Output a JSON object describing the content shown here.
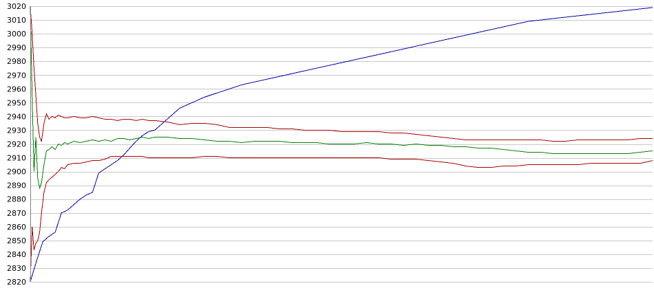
{
  "chart_data": {
    "type": "line",
    "title": "",
    "xlabel": "",
    "ylabel": "",
    "ylim": [
      2820,
      3020
    ],
    "xlim": [
      0,
      100
    ],
    "yticks": [
      3020,
      3010,
      3000,
      2990,
      2980,
      2970,
      2960,
      2950,
      2940,
      2930,
      2920,
      2910,
      2900,
      2890,
      2880,
      2870,
      2860,
      2850,
      2840,
      2830,
      2820
    ],
    "grid": true,
    "legend": "none",
    "series": [
      {
        "color": "#0000aa",
        "x": [
          0,
          1,
          2,
          3,
          4,
          5,
          6,
          7,
          8,
          9,
          10,
          11,
          12,
          13,
          14,
          15,
          16,
          17,
          18,
          19,
          20,
          22,
          24,
          26,
          28,
          30,
          32,
          34,
          36,
          38,
          40,
          42,
          44,
          46,
          48,
          50,
          52,
          54,
          56,
          58,
          60,
          62,
          64,
          66,
          68,
          70,
          72,
          74,
          76,
          78,
          80,
          82,
          84,
          86,
          88,
          90,
          92,
          94,
          96,
          98,
          100
        ],
        "values": [
          2820,
          2835,
          2849,
          2853,
          2856,
          2870,
          2872,
          2876,
          2880,
          2883,
          2885,
          2899,
          2902,
          2905,
          2908,
          2912,
          2917,
          2922,
          2926,
          2929,
          2930,
          2938,
          2946,
          2950,
          2954,
          2957,
          2960,
          2963,
          2965,
          2967,
          2969,
          2971,
          2973,
          2975,
          2977,
          2979,
          2981,
          2983,
          2985,
          2987,
          2989,
          2991,
          2993,
          2995,
          2997,
          2999,
          3001,
          3003,
          3005,
          3007,
          3009,
          3010,
          3011,
          3012,
          3013,
          3014,
          3015,
          3016,
          3017,
          3018,
          3019
        ]
      },
      {
        "color": "#008000",
        "x": [
          0,
          0.3,
          0.6,
          0.9,
          1.2,
          1.5,
          1.8,
          2.2,
          2.6,
          3.0,
          3.5,
          4.0,
          4.5,
          5.0,
          5.5,
          6,
          7,
          8,
          9,
          10,
          11,
          12,
          13,
          14,
          15,
          16,
          17,
          18,
          19,
          20,
          22,
          24,
          26,
          28,
          30,
          32,
          34,
          36,
          38,
          40,
          42,
          44,
          46,
          48,
          50,
          52,
          54,
          56,
          58,
          60,
          62,
          64,
          66,
          68,
          70,
          72,
          74,
          76,
          78,
          80,
          82,
          84,
          86,
          88,
          90,
          92,
          94,
          96,
          98,
          100
        ],
        "values": [
          3020,
          2955,
          2900,
          2925,
          2895,
          2888,
          2892,
          2905,
          2915,
          2916,
          2918,
          2916,
          2920,
          2919,
          2921,
          2920,
          2922,
          2921,
          2922,
          2923,
          2922,
          2923,
          2922,
          2924,
          2924,
          2923,
          2924,
          2925,
          2924,
          2925,
          2925,
          2924,
          2924,
          2923,
          2922,
          2922,
          2921,
          2922,
          2922,
          2922,
          2921,
          2921,
          2921,
          2920,
          2920,
          2920,
          2921,
          2920,
          2920,
          2919,
          2920,
          2919,
          2919,
          2918,
          2918,
          2917,
          2917,
          2916,
          2915,
          2914,
          2914,
          2913,
          2913,
          2913,
          2913,
          2913,
          2913,
          2913,
          2914,
          2915
        ]
      },
      {
        "color": "#aa0000",
        "x": [
          0,
          0.3,
          0.6,
          0.9,
          1.2,
          1.5,
          1.8,
          2.2,
          2.6,
          3.0,
          3.5,
          4.0,
          4.5,
          5.0,
          5.5,
          6,
          7,
          8,
          9,
          10,
          11,
          12,
          13,
          14,
          15,
          16,
          17,
          18,
          19,
          20,
          22,
          24,
          26,
          28,
          30,
          32,
          34,
          36,
          38,
          40,
          42,
          44,
          46,
          48,
          50,
          52,
          54,
          56,
          58,
          60,
          62,
          64,
          66,
          68,
          70,
          72,
          74,
          76,
          78,
          80,
          82,
          84,
          86,
          88,
          90,
          92,
          94,
          96,
          98,
          100
        ],
        "values": [
          3020,
          3000,
          2975,
          2955,
          2935,
          2925,
          2922,
          2935,
          2942,
          2938,
          2940,
          2939,
          2941,
          2940,
          2939,
          2939,
          2940,
          2939,
          2939,
          2940,
          2939,
          2938,
          2938,
          2937,
          2938,
          2938,
          2937,
          2938,
          2937,
          2937,
          2936,
          2934,
          2935,
          2935,
          2934,
          2932,
          2932,
          2932,
          2932,
          2931,
          2931,
          2930,
          2930,
          2930,
          2929,
          2929,
          2929,
          2929,
          2928,
          2928,
          2927,
          2926,
          2925,
          2924,
          2923,
          2923,
          2923,
          2923,
          2923,
          2923,
          2923,
          2922,
          2922,
          2923,
          2923,
          2923,
          2923,
          2923,
          2924,
          2924
        ]
      },
      {
        "color": "#aa0000",
        "x": [
          0,
          0.3,
          0.6,
          0.9,
          1.2,
          1.5,
          1.8,
          2.2,
          2.6,
          3.0,
          3.5,
          4.0,
          4.5,
          5.0,
          5.5,
          6,
          7,
          8,
          9,
          10,
          11,
          12,
          13,
          14,
          15,
          16,
          17,
          18,
          19,
          20,
          22,
          24,
          26,
          28,
          30,
          32,
          34,
          36,
          38,
          40,
          42,
          44,
          46,
          48,
          50,
          52,
          54,
          56,
          58,
          60,
          62,
          64,
          66,
          68,
          70,
          72,
          74,
          76,
          78,
          80,
          82,
          84,
          86,
          88,
          90,
          92,
          94,
          96,
          98,
          100
        ],
        "values": [
          2820,
          2860,
          2843,
          2848,
          2850,
          2856,
          2870,
          2885,
          2892,
          2894,
          2896,
          2898,
          2900,
          2903,
          2902,
          2905,
          2906,
          2906,
          2907,
          2908,
          2908,
          2909,
          2911,
          2911,
          2911,
          2911,
          2911,
          2911,
          2910,
          2910,
          2910,
          2910,
          2910,
          2911,
          2911,
          2910,
          2910,
          2910,
          2910,
          2910,
          2910,
          2910,
          2910,
          2910,
          2910,
          2910,
          2910,
          2910,
          2909,
          2909,
          2909,
          2908,
          2907,
          2906,
          2904,
          2903,
          2903,
          2904,
          2904,
          2905,
          2905,
          2905,
          2905,
          2905,
          2906,
          2906,
          2906,
          2906,
          2906,
          2908
        ]
      }
    ]
  }
}
